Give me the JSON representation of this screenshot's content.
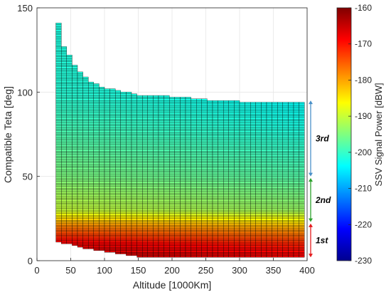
{
  "chart_data": {
    "type": "heatmap",
    "description_text": "",
    "xlabel": "Altitude [1000Km]",
    "ylabel": "Compatible Teta [deg]",
    "xlim": [
      0,
      400
    ],
    "ylim": [
      0,
      150
    ],
    "xticks": [
      0,
      50,
      100,
      150,
      200,
      250,
      300,
      350,
      400
    ],
    "yticks": [
      0,
      50,
      100,
      150
    ],
    "colorbar": {
      "label": "SSV Signal Power [dBW]",
      "range": [
        -230,
        -160
      ],
      "ticks": [
        -160,
        -170,
        -180,
        -190,
        -200,
        -210,
        -220,
        -230
      ],
      "colormap": "jet"
    },
    "altitude_range": [
      28,
      390
    ],
    "theta_max_at_altitude": [
      {
        "alt": 28,
        "teta_max": 147
      },
      {
        "alt": 40,
        "teta_max": 127
      },
      {
        "alt": 60,
        "teta_max": 113
      },
      {
        "alt": 80,
        "teta_max": 106
      },
      {
        "alt": 100,
        "teta_max": 102
      },
      {
        "alt": 150,
        "teta_max": 98
      },
      {
        "alt": 200,
        "teta_max": 97
      },
      {
        "alt": 250,
        "teta_max": 95
      },
      {
        "alt": 300,
        "teta_max": 94
      },
      {
        "alt": 390,
        "teta_max": 94
      }
    ],
    "theta_min_at_altitude": [
      {
        "alt": 28,
        "teta_min": 12
      },
      {
        "alt": 80,
        "teta_min": 7
      },
      {
        "alt": 150,
        "teta_min": 3
      },
      {
        "alt": 390,
        "teta_min": 2
      }
    ],
    "regions": [
      {
        "label": "1st",
        "teta_range": [
          2,
          22
        ],
        "color": "#e41a1c"
      },
      {
        "label": "2nd",
        "teta_range": [
          23,
          49
        ],
        "color": "#2ca02c"
      },
      {
        "label": "3rd",
        "teta_range": [
          50,
          95
        ],
        "color": "#4a90c8"
      }
    ],
    "power_profile": [
      {
        "teta": 0,
        "power": -163
      },
      {
        "teta": 10,
        "power": -167
      },
      {
        "teta": 20,
        "power": -177
      },
      {
        "teta": 30,
        "power": -190
      },
      {
        "teta": 50,
        "power": -195
      },
      {
        "teta": 80,
        "power": -199
      },
      {
        "teta": 100,
        "power": -201
      },
      {
        "teta": 150,
        "power": -202
      }
    ]
  }
}
